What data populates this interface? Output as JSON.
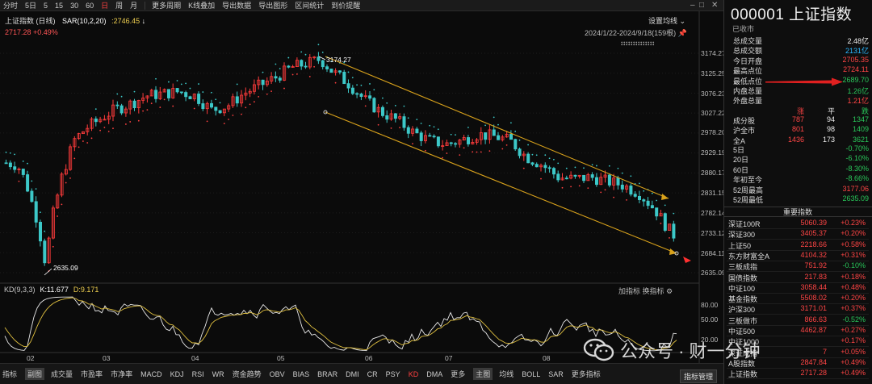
{
  "toolbar": {
    "items": [
      "分时",
      "5日",
      "5",
      "15",
      "30",
      "60",
      "日",
      "周",
      "月",
      "更多周期",
      "K线叠加",
      "导出数据",
      "导出图形",
      "区间统计",
      "到价提醒"
    ],
    "active_index": 6
  },
  "indicator": {
    "title": "上证指数 (日线)",
    "sar_label": "SAR(10,2,20)",
    "sar_value": ":2746.45",
    "sar_arrow": "↓",
    "price_line": "2717.28 +0.49%"
  },
  "settings_label": "设置均线",
  "range_label": "2024/1/22-2024/9/18(159根)",
  "arrows_row": "↕↕↕↕↕↕↕↕↕↕↕↕↕↕",
  "annotations": {
    "high": "3174.27",
    "low": "2635.09"
  },
  "kd": {
    "label": "KD(9,3,3)",
    "k": "K:11.677",
    "d": "D:9.171",
    "right": "加指标  换指标",
    "y_ticks": [
      "80.00",
      "50.00",
      "20.00"
    ]
  },
  "chart_data": {
    "type": "candlestick",
    "title": "上证指数 (日线)",
    "y_ticks": [
      "3174.27",
      "3125.25",
      "3076.23",
      "3027.22",
      "2978.20",
      "2929.19",
      "2880.17",
      "2831.15",
      "2782.14",
      "2733.12",
      "2684.11",
      "2635.09"
    ],
    "x_ticks": [
      "02",
      "03",
      "04",
      "05",
      "06",
      "07",
      "08"
    ],
    "ylim": [
      2635.09,
      3174.27
    ],
    "annotated_high": 3174.27,
    "annotated_low": 2635.09,
    "last_close": 2717.28,
    "sar": 2746.45
  },
  "tabs": [
    "指标",
    "副图",
    "成交量",
    "市盈率",
    "市净率",
    "MACD",
    "KDJ",
    "RSI",
    "WR",
    "资金趋势",
    "OBV",
    "BIAS",
    "BRAR",
    "DMI",
    "CR",
    "PSY",
    "KD",
    "DMA",
    "更多",
    "主图",
    "均线",
    "BOLL",
    "SAR",
    "更多指标"
  ],
  "tab_right": "指标管理",
  "side": {
    "title": "000001 上证指数",
    "status": "已收市",
    "stats": [
      {
        "label": "总成交量",
        "value": "2.48亿",
        "color": "white"
      },
      {
        "label": "总成交额",
        "value": "2131亿",
        "color": "cyan"
      },
      {
        "label": "今日开盘",
        "value": "2705.35",
        "color": "red"
      },
      {
        "label": "最高点位",
        "value": "2724.11",
        "color": "red"
      },
      {
        "label": "最低点位",
        "value": "2689.70",
        "color": "green"
      },
      {
        "label": "内盘总量",
        "value": "1.26亿",
        "color": "green"
      },
      {
        "label": "外盘总量",
        "value": "1.21亿",
        "color": "red"
      }
    ],
    "tri_head": [
      "涨",
      "平",
      "跌"
    ],
    "tri": [
      {
        "label": "成分股",
        "a": "787",
        "b": "94",
        "c": "1347"
      },
      {
        "label": "沪全市",
        "a": "801",
        "b": "98",
        "c": "1409"
      },
      {
        "label": "全A",
        "a": "1436",
        "b": "173",
        "c": "3621"
      }
    ],
    "perf": [
      {
        "label": "5日",
        "value": "-0.70%",
        "color": "green"
      },
      {
        "label": "20日",
        "value": "-6.10%",
        "color": "green"
      },
      {
        "label": "60日",
        "value": "-8.30%",
        "color": "green"
      },
      {
        "label": "年初至今",
        "value": "-8.66%",
        "color": "green"
      },
      {
        "label": "52周最高",
        "value": "3177.06",
        "color": "red"
      },
      {
        "label": "52周最低",
        "value": "2635.09",
        "color": "green"
      }
    ],
    "important_header": "重要指数",
    "indices": [
      {
        "name": "深证100R",
        "price": "5060.39",
        "chg": "+0.23%"
      },
      {
        "name": "深证300",
        "price": "3405.37",
        "chg": "+0.20%"
      },
      {
        "name": "上证50",
        "price": "2218.66",
        "chg": "+0.58%"
      },
      {
        "name": "东方财富全A",
        "price": "4104.32",
        "chg": "+0.31%"
      },
      {
        "name": "三板成指",
        "price": "751.92",
        "chg": "-0.10%"
      },
      {
        "name": "国债指数",
        "price": "217.83",
        "chg": "+0.18%"
      },
      {
        "name": "中证100",
        "price": "3058.44",
        "chg": "+0.48%"
      },
      {
        "name": "基金指数",
        "price": "5508.02",
        "chg": "+0.20%"
      },
      {
        "name": "沪深300",
        "price": "3171.01",
        "chg": "+0.37%"
      },
      {
        "name": "三板做市",
        "price": "866.63",
        "chg": "-0.52%"
      },
      {
        "name": "中证500",
        "price": "4462.87",
        "chg": "+0.27%"
      },
      {
        "name": "中证1000",
        "price": "",
        "chg": "+0.17%"
      },
      {
        "name": "深证成指",
        "price": "7",
        "chg": "+0.05%"
      },
      {
        "name": "A股指数",
        "price": "2847.84",
        "chg": "+0.49%"
      },
      {
        "name": "上证指数",
        "price": "2717.28",
        "chg": "+0.49%"
      }
    ]
  },
  "watermark": "公众号 · 财一分钟"
}
